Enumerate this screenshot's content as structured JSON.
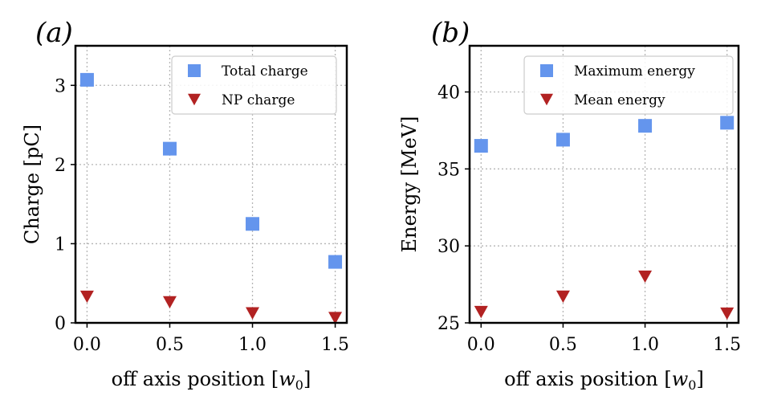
{
  "chart_data": [
    {
      "type": "scatter",
      "panel_label": "(a)",
      "x": [
        0.0,
        0.5,
        1.0,
        1.5
      ],
      "xticks": [
        "0.0",
        "0.5",
        "1.0",
        "1.5"
      ],
      "xlim": [
        -0.07,
        1.57
      ],
      "xlabel_prefix": "off axis position [",
      "xlabel_var": "w",
      "xlabel_sub": "0",
      "xlabel_suffix": "]",
      "ylabel": "Charge [pC]",
      "ylim": [
        0,
        3.5
      ],
      "yticks": [
        0,
        1,
        2,
        3
      ],
      "ytick_labels": [
        "0",
        "1",
        "2",
        "3"
      ],
      "grid": true,
      "legend_position": "top-right",
      "series": [
        {
          "name": "Total charge",
          "marker": "square",
          "color": "#6495ed",
          "values": [
            3.07,
            2.2,
            1.25,
            0.77
          ]
        },
        {
          "name": "NP charge",
          "marker": "triangle-down",
          "color": "#b22222",
          "values": [
            0.33,
            0.26,
            0.12,
            0.06
          ]
        }
      ]
    },
    {
      "type": "scatter",
      "panel_label": "(b)",
      "x": [
        0.0,
        0.5,
        1.0,
        1.5
      ],
      "xticks": [
        "0.0",
        "0.5",
        "1.0",
        "1.5"
      ],
      "xlim": [
        -0.07,
        1.57
      ],
      "xlabel_prefix": "off axis position [",
      "xlabel_var": "w",
      "xlabel_sub": "0",
      "xlabel_suffix": "]",
      "ylabel": "Energy [MeV]",
      "ylim": [
        25,
        43
      ],
      "yticks": [
        25,
        30,
        35,
        40
      ],
      "ytick_labels": [
        "25",
        "30",
        "35",
        "40"
      ],
      "grid": true,
      "legend_position": "top-right",
      "series": [
        {
          "name": "Maximum energy",
          "marker": "square",
          "color": "#6495ed",
          "values": [
            36.5,
            36.9,
            37.8,
            38.0
          ]
        },
        {
          "name": "Mean energy",
          "marker": "triangle-down",
          "color": "#b22222",
          "values": [
            25.7,
            26.7,
            28.0,
            25.6
          ]
        }
      ]
    }
  ]
}
